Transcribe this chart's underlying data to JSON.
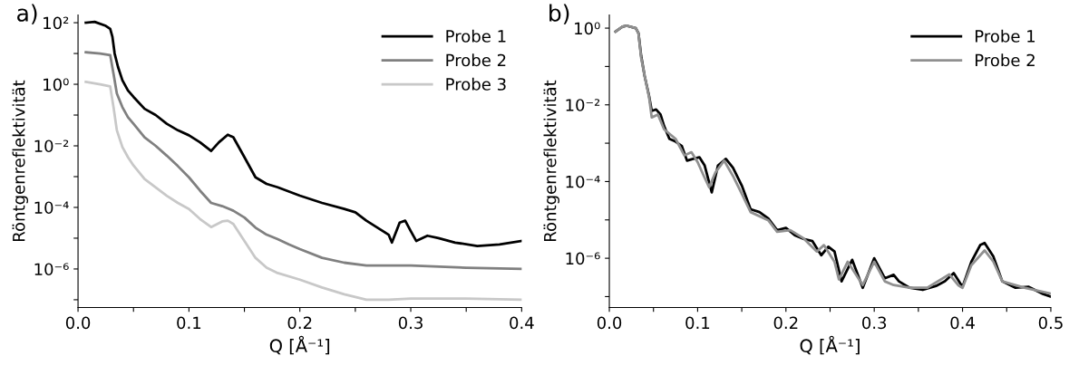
{
  "chart_data": [
    {
      "type": "line",
      "title": "a)",
      "xlabel": "Q [Å⁻¹]",
      "ylabel": "Röntgenreflektivität",
      "log": "y",
      "legend": "top right",
      "grid": false,
      "xlim": [
        0,
        0.4
      ],
      "xticks": [
        {
          "value": 0,
          "label": "0.0"
        },
        {
          "value": 0.05,
          "label": null
        },
        0.1,
        {
          "value": 0.15,
          "label": null
        },
        0.2,
        {
          "value": 0.25,
          "label": null
        },
        0.3,
        {
          "value": 0.35,
          "label": null
        },
        0.4
      ],
      "ylim": [
        5.6e-08,
        178
      ],
      "yticks": [
        {
          "value": 1e-07,
          "label": null
        },
        {
          "value": 1e-06,
          "label": "10⁻⁶"
        },
        {
          "value": 1e-05,
          "label": null
        },
        {
          "value": 0.0001,
          "label": "10⁻⁴"
        },
        {
          "value": 0.001,
          "label": null
        },
        {
          "value": 0.01,
          "label": "10⁻²"
        },
        {
          "value": 0.1,
          "label": null
        },
        {
          "value": 1,
          "label": "10⁰"
        },
        {
          "value": 10,
          "label": null
        },
        {
          "value": 100,
          "label": "10²"
        }
      ],
      "series": [
        {
          "name": "Probe 1",
          "color": "#000000",
          "x": [
            0.007,
            0.015,
            0.025,
            0.029,
            0.031,
            0.033,
            0.036,
            0.04,
            0.045,
            0.05,
            0.06,
            0.07,
            0.08,
            0.09,
            0.1,
            0.11,
            0.12,
            0.127,
            0.135,
            0.14,
            0.15,
            0.16,
            0.17,
            0.18,
            0.2,
            0.22,
            0.24,
            0.25,
            0.26,
            0.27,
            0.28,
            0.283,
            0.29,
            0.295,
            0.3,
            0.305,
            0.315,
            0.325,
            0.34,
            0.36,
            0.38,
            0.4
          ],
          "values": [
            100,
            107,
            79,
            63,
            35,
            10,
            3.7,
            1.35,
            0.63,
            0.39,
            0.16,
            0.1,
            0.052,
            0.032,
            0.022,
            0.013,
            0.0068,
            0.013,
            0.023,
            0.019,
            0.0043,
            0.00095,
            0.00058,
            0.00045,
            0.00024,
            0.00014,
            8.9e-05,
            6.9e-05,
            3.7e-05,
            2.2e-05,
            1.3e-05,
            7.2e-06,
            3.2e-05,
            3.7e-05,
            1.7e-05,
            8.1e-06,
            1.2e-05,
            1e-05,
            7.2e-06,
            5.6e-06,
            6.3e-06,
            8.1e-06
          ]
        },
        {
          "name": "Probe 2",
          "color": "#808080",
          "x": [
            0.007,
            0.02,
            0.029,
            0.032,
            0.035,
            0.04,
            0.045,
            0.05,
            0.06,
            0.07,
            0.08,
            0.09,
            0.1,
            0.11,
            0.12,
            0.13,
            0.14,
            0.15,
            0.16,
            0.17,
            0.18,
            0.19,
            0.2,
            0.22,
            0.24,
            0.26,
            0.3,
            0.35,
            0.4
          ],
          "values": [
            11,
            10,
            8.9,
            2.2,
            0.5,
            0.18,
            0.085,
            0.052,
            0.019,
            0.01,
            0.0048,
            0.0022,
            0.00095,
            0.00035,
            0.00014,
            0.00011,
            7.8e-05,
            4.7e-05,
            2.2e-05,
            1.3e-05,
            9.3e-06,
            6.3e-06,
            4.4e-06,
            2.3e-06,
            1.6e-06,
            1.3e-06,
            1.3e-06,
            1.1e-06,
            1e-06
          ]
        },
        {
          "name": "Probe 3",
          "color": "#c8c8c8",
          "x": [
            0.007,
            0.02,
            0.029,
            0.032,
            0.035,
            0.04,
            0.045,
            0.05,
            0.06,
            0.07,
            0.08,
            0.09,
            0.1,
            0.11,
            0.12,
            0.13,
            0.135,
            0.14,
            0.15,
            0.16,
            0.17,
            0.18,
            0.2,
            0.22,
            0.24,
            0.26,
            0.28,
            0.3,
            0.35,
            0.4
          ],
          "values": [
            1.2,
            1.0,
            0.85,
            0.18,
            0.032,
            0.0091,
            0.0043,
            0.0023,
            0.00083,
            0.00045,
            0.00024,
            0.00014,
            8.9e-05,
            4.2e-05,
            2.3e-05,
            3.5e-05,
            3.7e-05,
            2.9e-05,
            8.1e-06,
            2.3e-06,
            1.1e-06,
            7.4e-07,
            4.5e-07,
            2.5e-07,
            1.5e-07,
            1e-07,
            1e-07,
            1.1e-07,
            1.1e-07,
            1e-07
          ]
        }
      ]
    },
    {
      "type": "line",
      "title": "b)",
      "xlabel": "Q [Å⁻¹]",
      "ylabel": "Röntgenreflektivität",
      "log": "y",
      "legend": "top right",
      "grid": false,
      "xlim": [
        0,
        0.5
      ],
      "xticks": [
        {
          "value": 0,
          "label": "0.0"
        },
        {
          "value": 0.05,
          "label": null
        },
        0.1,
        {
          "value": 0.15,
          "label": null
        },
        0.2,
        {
          "value": 0.25,
          "label": null
        },
        0.3,
        {
          "value": 0.35,
          "label": null
        },
        0.4,
        {
          "value": 0.45,
          "label": null
        },
        0.5
      ],
      "ylim": [
        5.2e-08,
        2.2
      ],
      "yticks": [
        {
          "value": 1e-07,
          "label": null
        },
        {
          "value": 1e-06,
          "label": "10⁻⁶"
        },
        {
          "value": 1e-05,
          "label": null
        },
        {
          "value": 0.0001,
          "label": "10⁻⁴"
        },
        {
          "value": 0.001,
          "label": null
        },
        {
          "value": 0.01,
          "label": "10⁻²"
        },
        {
          "value": 0.1,
          "label": null
        },
        {
          "value": 1,
          "label": "10⁰"
        }
      ],
      "series": [
        {
          "name": "Probe 1",
          "color": "#000000",
          "x": [
            0.007,
            0.015,
            0.02,
            0.03,
            0.033,
            0.036,
            0.04,
            0.045,
            0.048,
            0.053,
            0.058,
            0.062,
            0.068,
            0.075,
            0.082,
            0.088,
            0.095,
            0.102,
            0.108,
            0.116,
            0.123,
            0.132,
            0.14,
            0.15,
            0.16,
            0.17,
            0.18,
            0.19,
            0.2,
            0.21,
            0.22,
            0.23,
            0.24,
            0.248,
            0.255,
            0.263,
            0.275,
            0.287,
            0.3,
            0.312,
            0.322,
            0.328,
            0.34,
            0.355,
            0.37,
            0.38,
            0.39,
            0.4,
            0.41,
            0.42,
            0.425,
            0.435,
            0.445,
            0.46,
            0.475,
            0.49,
            0.5
          ],
          "values": [
            0.81,
            1.1,
            1.15,
            1.0,
            0.74,
            0.19,
            0.056,
            0.017,
            0.0069,
            0.0076,
            0.0056,
            0.0028,
            0.0013,
            0.0011,
            0.00085,
            0.00035,
            0.00039,
            0.00043,
            0.00026,
            5.2e-05,
            0.00026,
            0.00039,
            0.00023,
            7.9e-05,
            1.9e-05,
            1.6e-05,
            1.1e-05,
            5.4e-06,
            6.2e-06,
            4e-06,
            3.2e-06,
            2.8e-06,
            1.2e-06,
            2e-06,
            1.5e-06,
            2.5e-07,
            9.1e-07,
            1.7e-07,
            1e-06,
            3e-07,
            3.7e-07,
            2.5e-07,
            1.7e-07,
            1.5e-07,
            1.9e-07,
            2.5e-07,
            4.1e-07,
            1.8e-07,
            8.1e-07,
            2.2e-06,
            2.5e-06,
            1.1e-06,
            2.5e-07,
            1.7e-07,
            1.8e-07,
            1.2e-07,
            1e-07
          ]
        },
        {
          "name": "Probe 2",
          "color": "#909090",
          "x": [
            0.007,
            0.015,
            0.02,
            0.03,
            0.033,
            0.036,
            0.04,
            0.045,
            0.048,
            0.055,
            0.062,
            0.075,
            0.085,
            0.093,
            0.1,
            0.107,
            0.113,
            0.12,
            0.13,
            0.14,
            0.15,
            0.16,
            0.18,
            0.19,
            0.205,
            0.22,
            0.235,
            0.243,
            0.255,
            0.26,
            0.27,
            0.287,
            0.3,
            0.312,
            0.322,
            0.34,
            0.36,
            0.385,
            0.395,
            0.4,
            0.41,
            0.425,
            0.435,
            0.445,
            0.47,
            0.5
          ],
          "values": [
            0.81,
            1.1,
            1.15,
            1.0,
            0.74,
            0.17,
            0.056,
            0.016,
            0.0047,
            0.0056,
            0.0023,
            0.0013,
            0.00048,
            0.00058,
            0.00032,
            0.00014,
            7.1e-05,
            0.00017,
            0.00035,
            0.00014,
            4.8e-05,
            1.6e-05,
            9.8e-06,
            4.9e-06,
            5.4e-06,
            3.3e-06,
            1.5e-06,
            2.2e-06,
            8.1e-07,
            2.8e-07,
            8.1e-07,
            2e-07,
            8.1e-07,
            2.5e-07,
            2e-07,
            1.7e-07,
            1.7e-07,
            3.8e-07,
            2e-07,
            1.7e-07,
            6.6e-07,
            1.6e-06,
            8.1e-07,
            2.5e-07,
            1.7e-07,
            1.2e-07
          ]
        }
      ]
    }
  ]
}
